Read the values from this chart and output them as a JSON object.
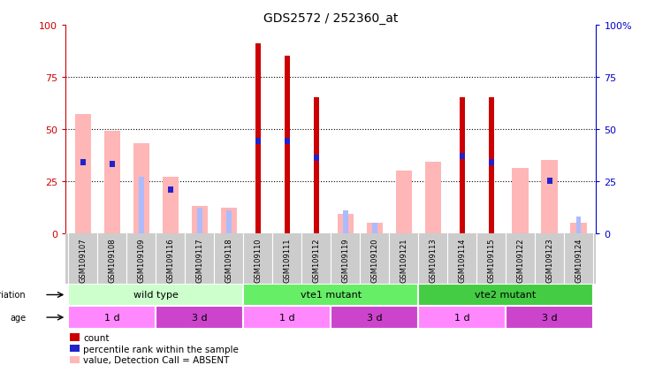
{
  "title": "GDS2572 / 252360_at",
  "samples": [
    "GSM109107",
    "GSM109108",
    "GSM109109",
    "GSM109116",
    "GSM109117",
    "GSM109118",
    "GSM109110",
    "GSM109111",
    "GSM109112",
    "GSM109119",
    "GSM109120",
    "GSM109121",
    "GSM109113",
    "GSM109114",
    "GSM109115",
    "GSM109122",
    "GSM109123",
    "GSM109124"
  ],
  "count_values": [
    0,
    0,
    0,
    0,
    0,
    0,
    91,
    85,
    65,
    0,
    0,
    0,
    0,
    65,
    65,
    0,
    0,
    0
  ],
  "percentile_values": [
    34,
    33,
    0,
    21,
    0,
    0,
    44,
    44,
    36,
    0,
    0,
    0,
    0,
    37,
    34,
    0,
    25,
    0
  ],
  "value_absent": [
    57,
    49,
    43,
    27,
    13,
    12,
    0,
    0,
    0,
    9,
    5,
    30,
    34,
    0,
    0,
    31,
    35,
    5
  ],
  "rank_absent": [
    0,
    0,
    27,
    0,
    12,
    11,
    0,
    0,
    0,
    11,
    5,
    0,
    0,
    0,
    0,
    0,
    0,
    8
  ],
  "ylim": [
    0,
    100
  ],
  "count_color": "#CC0000",
  "percentile_color": "#2222CC",
  "value_absent_color": "#FFB6B6",
  "rank_absent_color": "#AABCFF",
  "groups": [
    {
      "label": "wild type",
      "start": 0,
      "end": 6,
      "color": "#CCFFCC"
    },
    {
      "label": "vte1 mutant",
      "start": 6,
      "end": 12,
      "color": "#66EE66"
    },
    {
      "label": "vte2 mutant",
      "start": 12,
      "end": 18,
      "color": "#44CC44"
    }
  ],
  "ages": [
    {
      "label": "1 d",
      "start": 0,
      "end": 3,
      "color": "#FF88FF"
    },
    {
      "label": "3 d",
      "start": 3,
      "end": 6,
      "color": "#CC44CC"
    },
    {
      "label": "1 d",
      "start": 6,
      "end": 9,
      "color": "#FF88FF"
    },
    {
      "label": "3 d",
      "start": 9,
      "end": 12,
      "color": "#CC44CC"
    },
    {
      "label": "1 d",
      "start": 12,
      "end": 15,
      "color": "#FF88FF"
    },
    {
      "label": "3 d",
      "start": 15,
      "end": 18,
      "color": "#CC44CC"
    }
  ],
  "legend_labels": [
    "count",
    "percentile rank within the sample",
    "value, Detection Call = ABSENT",
    "rank, Detection Call = ABSENT"
  ],
  "legend_colors": [
    "#CC0000",
    "#2222CC",
    "#FFB6B6",
    "#AABCFF"
  ],
  "xtick_bg": "#CCCCCC",
  "left_ytick_color": "#CC0000",
  "right_ytick_color": "#0000CC"
}
